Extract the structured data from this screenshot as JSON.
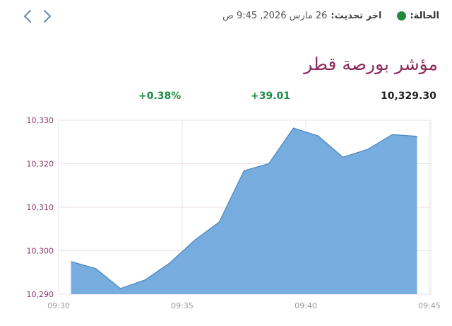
{
  "nav": {
    "back_icon": "chevron-left-icon",
    "forward_icon": "chevron-right-icon"
  },
  "status": {
    "label": "الحالة:",
    "indicator_color": "#1e8a3c",
    "update_label": "اخر تحديث:",
    "update_value": "26 مارس 2026, 9:45 ص"
  },
  "title": "مؤشر بورصة قطر",
  "stats": {
    "value": "10,329.30",
    "change": "+39.01",
    "change_percent": "+0.38%",
    "positive_color": "#1e8a4a"
  },
  "chart_data": {
    "type": "area",
    "title": "مؤشر بورصة قطر",
    "xlabel": "",
    "ylabel": "",
    "x": [
      "09:30:30",
      "09:31:30",
      "09:32:30",
      "09:33:30",
      "09:34:30",
      "09:35:30",
      "09:36:30",
      "09:37:30",
      "09:38:30",
      "09:39:30",
      "09:40:30",
      "09:41:30",
      "09:42:30",
      "09:43:30",
      "09:44:30"
    ],
    "values": [
      10297.5,
      10295.9,
      10291.3,
      10293.3,
      10297.2,
      10302.4,
      10306.6,
      10318.4,
      10320.0,
      10328.2,
      10326.4,
      10321.5,
      10323.3,
      10326.7,
      10326.3
    ],
    "ylim": [
      10290,
      10330
    ],
    "yticks": [
      "10,330",
      "10,320",
      "10,310",
      "10,300",
      "10,290"
    ],
    "xticks": [
      "09:30",
      "09:35",
      "09:40",
      "09:45"
    ],
    "grid": true,
    "legend": "none",
    "fill_color": "#6fa8dc",
    "line_color": "#4a86c0"
  }
}
